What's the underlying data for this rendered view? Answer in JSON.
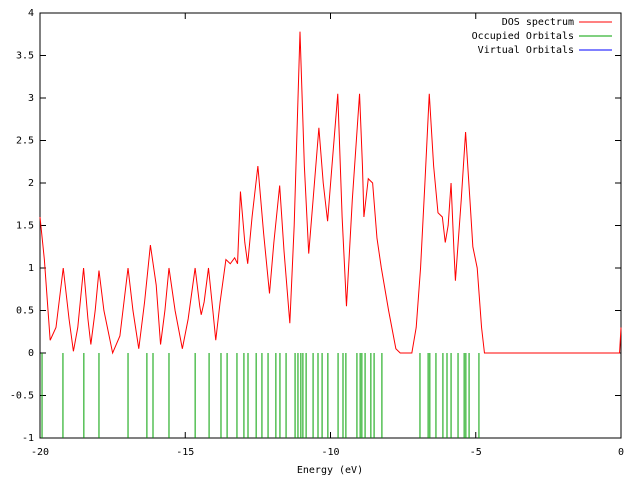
{
  "chart_data": {
    "type": "line",
    "xlabel": "Energy (eV)",
    "xlim": [
      -20,
      0
    ],
    "xticks": [
      -20,
      -15,
      -10,
      -5,
      0
    ],
    "ylim": [
      -1,
      4
    ],
    "yticks": [
      -1,
      -0.5,
      0,
      0.5,
      1,
      1.5,
      2,
      2.5,
      3,
      3.5,
      4
    ],
    "legend": "top-right",
    "series": [
      {
        "name": "DOS spectrum",
        "color": "#ff0000",
        "style": "lines",
        "x": [
          -20,
          -19.85,
          -19.65,
          -19.45,
          -19.2,
          -19.0,
          -18.85,
          -18.7,
          -18.5,
          -18.35,
          -18.25,
          -18.1,
          -17.97,
          -17.8,
          -17.5,
          -17.25,
          -16.97,
          -16.8,
          -16.6,
          -16.4,
          -16.2,
          -16.0,
          -15.85,
          -15.7,
          -15.56,
          -15.35,
          -15.1,
          -14.9,
          -14.66,
          -14.5,
          -14.45,
          -14.35,
          -14.2,
          -14.05,
          -13.95,
          -13.8,
          -13.6,
          -13.45,
          -13.3,
          -13.2,
          -13.1,
          -12.95,
          -12.85,
          -12.7,
          -12.5,
          -12.3,
          -12.1,
          -11.95,
          -11.75,
          -11.6,
          -11.4,
          -11.25,
          -11.05,
          -10.9,
          -10.75,
          -10.6,
          -10.4,
          -10.25,
          -10.1,
          -9.95,
          -9.75,
          -9.6,
          -9.45,
          -9.25,
          -9.0,
          -8.9,
          -8.85,
          -8.7,
          -8.55,
          -8.4,
          -8.25,
          -8.0,
          -7.75,
          -7.6,
          -7.2,
          -7.05,
          -6.9,
          -6.75,
          -6.6,
          -6.45,
          -6.3,
          -6.15,
          -6.05,
          -5.95,
          -5.85,
          -5.75,
          -5.7,
          -5.5,
          -5.35,
          -5.2,
          -5.1,
          -4.95,
          -4.8,
          -4.7,
          -0.05,
          0
        ],
        "values": [
          1.6,
          1.1,
          0.15,
          0.3,
          1.0,
          0.4,
          0.02,
          0.3,
          1.0,
          0.4,
          0.1,
          0.5,
          0.97,
          0.5,
          0.0,
          0.2,
          1.0,
          0.5,
          0.05,
          0.6,
          1.27,
          0.8,
          0.1,
          0.5,
          1.0,
          0.5,
          0.05,
          0.4,
          1.0,
          0.55,
          0.45,
          0.6,
          1.0,
          0.5,
          0.15,
          0.6,
          1.1,
          1.05,
          1.12,
          1.05,
          1.9,
          1.3,
          1.05,
          1.6,
          2.2,
          1.4,
          0.7,
          1.3,
          1.97,
          1.2,
          0.35,
          1.5,
          3.78,
          2.2,
          1.17,
          1.8,
          2.65,
          2.0,
          1.55,
          2.2,
          3.05,
          1.6,
          0.55,
          1.8,
          3.05,
          2.2,
          1.6,
          2.05,
          2.0,
          1.35,
          1.0,
          0.5,
          0.05,
          0.0,
          0.0,
          0.3,
          1.0,
          2.0,
          3.05,
          2.2,
          1.65,
          1.6,
          1.3,
          1.5,
          2.0,
          1.2,
          0.85,
          1.8,
          2.6,
          1.8,
          1.25,
          1.0,
          0.3,
          0.0,
          0.0,
          0.3
        ]
      },
      {
        "name": "Occupied Orbitals",
        "color": "#00a000",
        "style": "impulses",
        "x": [
          -19.93,
          -19.21,
          -18.49,
          -17.97,
          -16.97,
          -16.32,
          -16.11,
          -15.56,
          -14.66,
          -14.18,
          -13.77,
          -13.56,
          -13.22,
          -12.98,
          -12.84,
          -12.56,
          -12.36,
          -12.15,
          -11.88,
          -11.74,
          -11.53,
          -11.22,
          -11.12,
          -11.02,
          -10.95,
          -10.84,
          -10.6,
          -10.43,
          -10.29,
          -10.09,
          -9.74,
          -9.57,
          -9.47,
          -9.09,
          -8.98,
          -8.92,
          -8.81,
          -8.61,
          -8.5,
          -8.23,
          -6.92,
          -6.64,
          -6.58,
          -6.37,
          -6.13,
          -5.99,
          -5.85,
          -5.61,
          -5.4,
          -5.34,
          -5.23,
          -4.89
        ],
        "values": [
          -1,
          -1,
          -1,
          -1,
          -1,
          -1,
          -1,
          -1,
          -1,
          -1,
          -1,
          -1,
          -1,
          -1,
          -1,
          -1,
          -1,
          -1,
          -1,
          -1,
          -1,
          -1,
          -1,
          -1,
          -1,
          -1,
          -1,
          -1,
          -1,
          -1,
          -1,
          -1,
          -1,
          -1,
          -1,
          -1,
          -1,
          -1,
          -1,
          -1,
          -1,
          -1,
          -1,
          -1,
          -1,
          -1,
          -1,
          -1,
          -1,
          -1,
          -1,
          -1
        ]
      },
      {
        "name": "Virtual Orbitals",
        "color": "#0000ff",
        "style": "impulses",
        "x": [],
        "values": []
      }
    ]
  }
}
